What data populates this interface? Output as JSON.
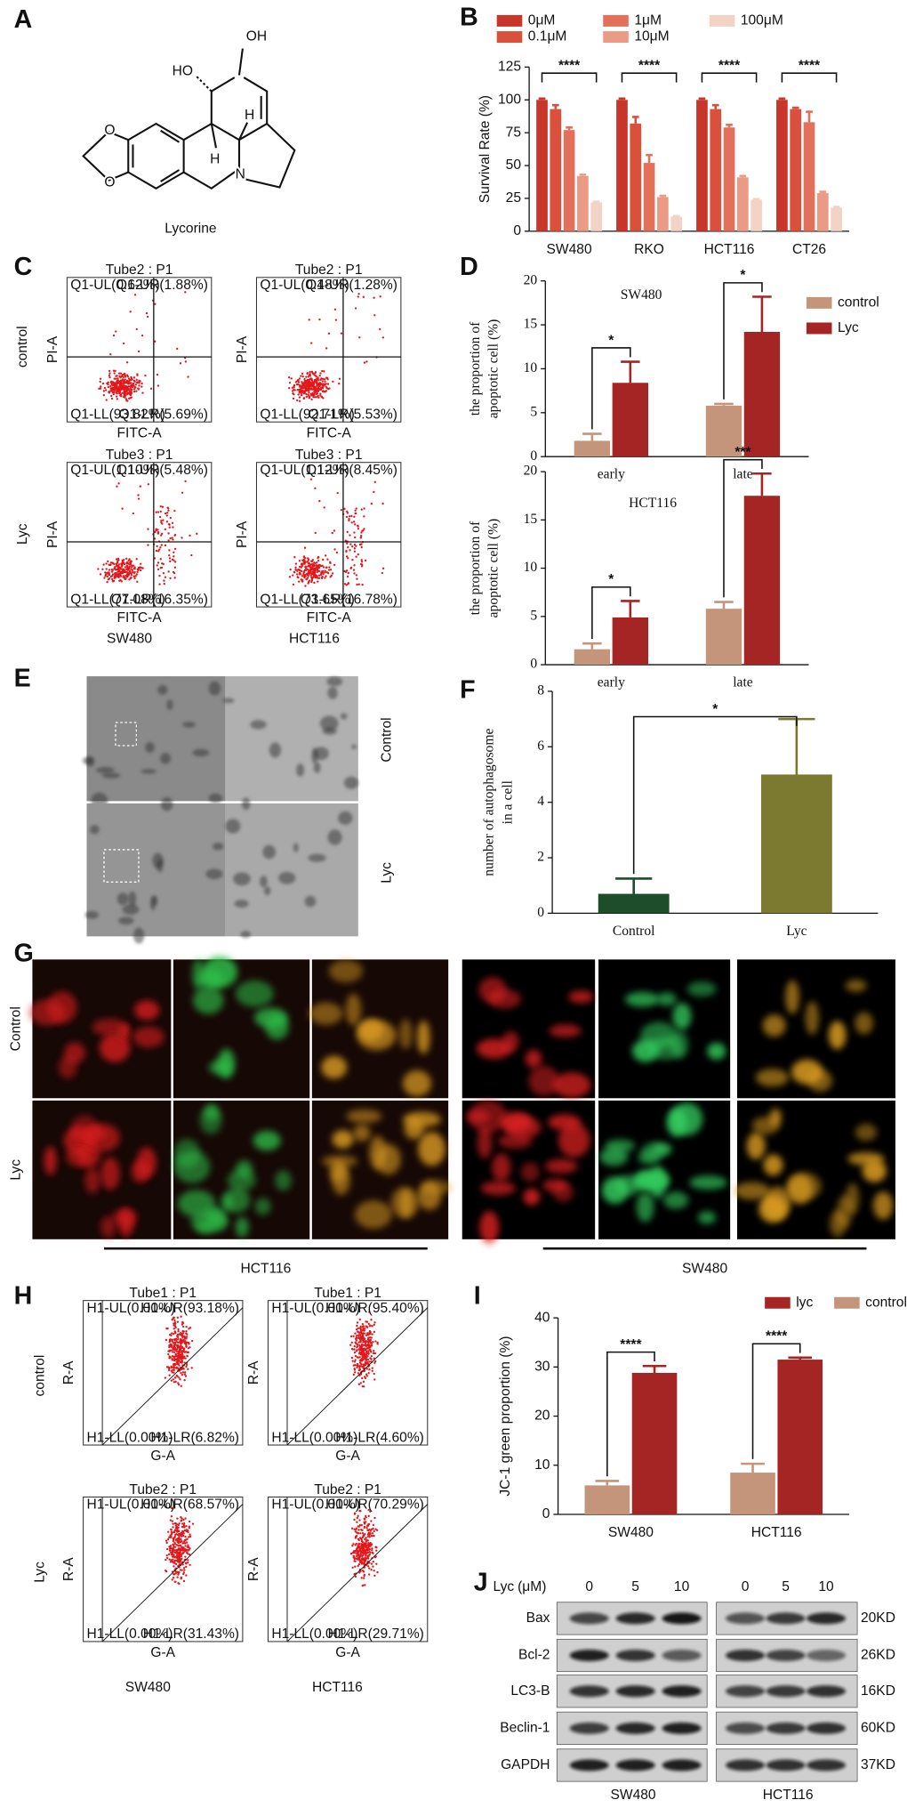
{
  "panels": [
    "A",
    "B",
    "C",
    "D",
    "E",
    "F",
    "G",
    "H",
    "I",
    "J"
  ],
  "panel_a": {
    "compound": "Lycorine",
    "atoms": [
      "OH",
      "HO",
      "H",
      "H",
      "N",
      "O",
      "O"
    ]
  },
  "panel_c": {
    "rows": [
      "control",
      "Lyc"
    ],
    "columns": [
      "SW480",
      "HCT116"
    ],
    "x_axis": "FITC-A",
    "y_axis": "PI-A",
    "plots": [
      {
        "title": "Tube2 : P1",
        "quadrants": [
          "Q1-UL(0.62%)",
          "Q1-UR(1.88%)",
          "Q1-LL(93.82%)",
          "Q1-LR(5.69%)"
        ]
      },
      {
        "title": "Tube2 : P1",
        "quadrants": [
          "Q1-UL(0.48%)",
          "Q1-UR(1.28%)",
          "Q1-LL(92.71%)",
          "Q1-LR(5.53%)"
        ]
      },
      {
        "title": "Tube3 : P1",
        "quadrants": [
          "Q1-UL(1.10%)",
          "Q1-UR(5.48%)",
          "Q1-LL(77.08%)",
          "Q1-LR(16.35%)"
        ]
      },
      {
        "title": "Tube3 : P1",
        "quadrants": [
          "Q1-UL(1.12%)",
          "Q1-UR(8.45%)",
          "Q1-LL(73.65%)",
          "Q1-LR(16.78%)"
        ]
      }
    ]
  },
  "panel_e": {
    "rows": [
      "Control",
      "Lyc"
    ]
  },
  "panel_g": {
    "rows": [
      "Control",
      "Lyc"
    ],
    "groups": [
      "HCT116",
      "SW480"
    ]
  },
  "panel_h": {
    "rows": [
      "control",
      "Lyc"
    ],
    "columns": [
      "SW480",
      "HCT116"
    ],
    "x_axis": "G-A",
    "y_axis": "R-A",
    "plots": [
      {
        "title": "Tube1 : P1",
        "quadrants": [
          "H1-UL(0.00%)",
          "H1-UR(93.18%)",
          "H1-LL(0.00%)",
          "H1-LR(6.82%)"
        ]
      },
      {
        "title": "Tube1 : P1",
        "quadrants": [
          "H1-UL(0.00%)",
          "H1-UR(95.40%)",
          "H1-LL(0.00%)",
          "H1-LR(4.60%)"
        ]
      },
      {
        "title": "Tube2 : P1",
        "quadrants": [
          "H1-UL(0.00%)",
          "H1-UR(68.57%)",
          "H1-LL(0.00%)",
          "H1-LR(31.43%)"
        ]
      },
      {
        "title": "Tube2 : P1",
        "quadrants": [
          "H1-UL(0.00%)",
          "H1-UR(70.29%)",
          "H1-LL(0.00%)",
          "H1-LR(29.71%)"
        ]
      }
    ]
  },
  "panel_j": {
    "treatment": "Lyc",
    "unit": "(μM)",
    "doses": [
      "0",
      "5",
      "10"
    ],
    "proteins": [
      "Bax",
      "Bcl-2",
      "LC3-B",
      "Beclin-1",
      "GAPDH"
    ],
    "sizes": [
      "20KD",
      "26KD",
      "16KD",
      "60KD",
      "37KD"
    ],
    "cell_lines": [
      "SW480",
      "HCT116"
    ]
  },
  "chart_data": [
    {
      "type": "bar",
      "y_label": "Survival Rate (%)",
      "categories": [
        "SW480",
        "RKO",
        "HCT116",
        "CT26"
      ],
      "series": [
        {
          "name": "0μM",
          "color": "#c8352b",
          "values": [
            100,
            100,
            100,
            100
          ],
          "errors": [
            1,
            1,
            1,
            1
          ]
        },
        {
          "name": "0.1μM",
          "color": "#d9503c",
          "values": [
            93,
            82,
            93,
            93
          ],
          "errors": [
            3,
            5,
            3,
            1
          ]
        },
        {
          "name": "1μM",
          "color": "#e2705a",
          "values": [
            77,
            52,
            79,
            83
          ],
          "errors": [
            2,
            6,
            2,
            8
          ]
        },
        {
          "name": "10μM",
          "color": "#eb9a85",
          "values": [
            42,
            26,
            41,
            29
          ],
          "errors": [
            1,
            1,
            1,
            1
          ]
        },
        {
          "name": "100μM",
          "color": "#f3d3c6",
          "values": [
            22,
            11,
            24,
            18
          ],
          "errors": [
            0.5,
            0.5,
            0.5,
            0.5
          ]
        }
      ],
      "significance": [
        "****",
        "****",
        "****",
        "****"
      ],
      "ylim": [
        0,
        125
      ],
      "yticks": [
        0,
        25,
        50,
        75,
        100,
        125
      ],
      "legend": "top"
    },
    {
      "type": "bar",
      "title": "SW480",
      "y_label": [
        "the proportion of",
        "apoptotic cell (%)"
      ],
      "categories": [
        "early",
        "late"
      ],
      "series": [
        {
          "name": "control",
          "color": "#c4957a",
          "values": [
            1.8,
            5.8
          ],
          "errors": [
            0.8,
            0.2
          ]
        },
        {
          "name": "Lyc",
          "color": "#a52424",
          "values": [
            8.4,
            14.2
          ],
          "errors": [
            2.4,
            4.0
          ]
        }
      ],
      "significance": [
        "*",
        "*"
      ],
      "ylim": [
        0,
        20
      ],
      "yticks": [
        0,
        5,
        10,
        15,
        20
      ],
      "legend": "right"
    },
    {
      "type": "bar",
      "title": "HCT116",
      "y_label": [
        "the proportion of",
        "apoptotic cell (%)"
      ],
      "categories": [
        "early",
        "late"
      ],
      "series": [
        {
          "color": "#c4957a",
          "values": [
            1.6,
            5.8
          ],
          "errors": [
            0.6,
            0.7
          ]
        },
        {
          "color": "#a52424",
          "values": [
            4.9,
            17.5
          ],
          "errors": [
            1.7,
            2.3
          ]
        }
      ],
      "significance": [
        "*",
        "***"
      ],
      "ylim": [
        0,
        20
      ],
      "yticks": [
        0,
        5,
        10,
        15,
        20
      ]
    },
    {
      "type": "bar",
      "y_label": [
        "number of autophagosome",
        "in a cell"
      ],
      "categories": [
        "Control",
        "Lyc"
      ],
      "values": [
        0.7,
        5.0
      ],
      "errors": [
        0.55,
        2.0
      ],
      "colors": [
        "#1e4d2b",
        "#7b7a30"
      ],
      "significance": "*",
      "ylim": [
        0,
        8
      ],
      "yticks": [
        0,
        2,
        4,
        6,
        8
      ]
    },
    {
      "type": "bar",
      "y_label": "JC-1 green proportion (%)",
      "categories": [
        "SW480",
        "HCT116"
      ],
      "series": [
        {
          "name": "lyc",
          "color": "#a52424",
          "values": [
            28.8,
            31.5
          ],
          "errors": [
            1.4,
            0.4
          ]
        },
        {
          "name": "control",
          "color": "#c4957a",
          "values": [
            5.9,
            8.5
          ],
          "errors": [
            0.9,
            1.8
          ]
        }
      ],
      "significance": [
        "****",
        "****"
      ],
      "ylim": [
        0,
        40
      ],
      "yticks": [
        0,
        10,
        20,
        30,
        40
      ],
      "legend": "top"
    }
  ]
}
